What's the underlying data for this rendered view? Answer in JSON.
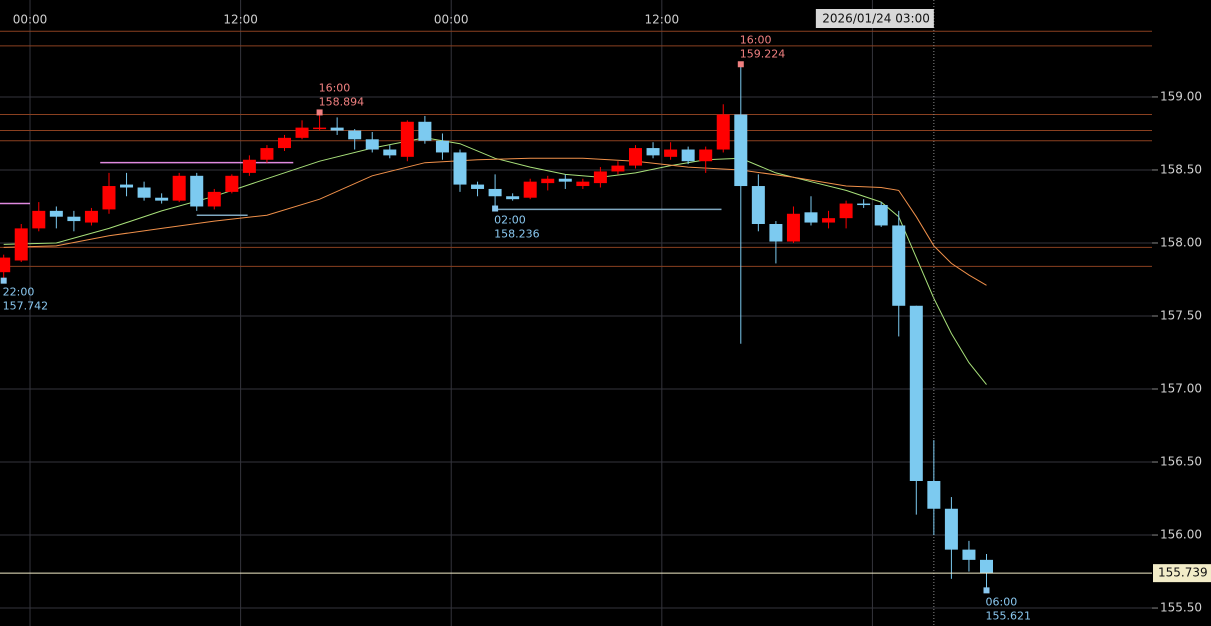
{
  "chart_data": {
    "type": "candlestick",
    "xlim": [
      -1.71,
      63.93
    ],
    "xticks": [
      {
        "value": 0,
        "label": "00:00"
      },
      {
        "value": 12,
        "label": "12:00"
      },
      {
        "value": 24,
        "label": "00:00"
      },
      {
        "value": 36,
        "label": "12:00"
      },
      {
        "value": 48,
        "label": null
      }
    ],
    "ylim": [
      155.377,
      159.664
    ],
    "yticks": [
      {
        "value": 155.5,
        "label": "155.50"
      },
      {
        "value": 156,
        "label": "156.00"
      },
      {
        "value": 156.5,
        "label": "156.50"
      },
      {
        "value": 157,
        "label": "157.00"
      },
      {
        "value": 157.5,
        "label": "157.50"
      },
      {
        "value": 158,
        "label": "158.00"
      },
      {
        "value": 158.5,
        "label": "158.50"
      },
      {
        "value": 159,
        "label": "159.00"
      }
    ],
    "grid": true,
    "up_color": "#ff0000",
    "down_color": "#7ccaf0",
    "candles": {
      "x": [
        -2,
        -1,
        0,
        1,
        2,
        3,
        4,
        5,
        6,
        7,
        8,
        9,
        10,
        11,
        12,
        13,
        14,
        15,
        16,
        17,
        18,
        19,
        20,
        21,
        22,
        23,
        24,
        25,
        26,
        27,
        28,
        29,
        30,
        31,
        32,
        33,
        34,
        35,
        36,
        37,
        38,
        39,
        40,
        41,
        42,
        43,
        44,
        45,
        46,
        47,
        48,
        49,
        50,
        51,
        52,
        53,
        54
      ],
      "open": [
        157.8,
        157.88,
        158.1,
        158.22,
        158.18,
        158.14,
        158.23,
        158.4,
        158.38,
        158.31,
        158.29,
        158.46,
        158.25,
        158.35,
        158.48,
        158.57,
        158.65,
        158.72,
        158.78,
        158.79,
        158.77,
        158.71,
        158.64,
        158.59,
        158.83,
        158.7,
        158.62,
        158.4,
        158.37,
        158.32,
        158.31,
        158.41,
        158.44,
        158.39,
        158.41,
        158.49,
        158.53,
        158.65,
        158.59,
        158.64,
        158.56,
        158.64,
        158.88,
        158.39,
        158.13,
        158.01,
        158.21,
        158.14,
        158.17,
        158.27,
        158.26,
        158.12,
        157.57,
        156.37,
        156.18,
        155.9,
        155.83
      ],
      "high": [
        157.92,
        158.13,
        158.28,
        158.25,
        158.22,
        158.24,
        158.48,
        158.48,
        158.42,
        158.34,
        158.48,
        158.48,
        158.37,
        158.47,
        158.6,
        158.67,
        158.74,
        158.84,
        158.894,
        158.86,
        158.78,
        158.76,
        158.67,
        158.84,
        158.87,
        158.75,
        158.64,
        158.42,
        158.47,
        158.34,
        158.44,
        158.46,
        158.47,
        158.44,
        158.52,
        158.56,
        158.67,
        158.69,
        158.69,
        158.66,
        158.66,
        158.95,
        159.224,
        158.47,
        158.15,
        158.25,
        158.32,
        158.22,
        158.29,
        158.3,
        158.28,
        158.22,
        157.57,
        156.65,
        156.26,
        155.96,
        155.87
      ],
      "low": [
        157.742,
        157.87,
        158.08,
        158.1,
        158.08,
        158.12,
        158.2,
        158.32,
        158.29,
        158.27,
        158.28,
        158.22,
        158.23,
        158.34,
        158.46,
        158.55,
        158.63,
        158.71,
        158.77,
        158.74,
        158.64,
        158.62,
        158.58,
        158.56,
        158.68,
        158.57,
        158.35,
        158.32,
        158.236,
        158.29,
        158.3,
        158.36,
        158.37,
        158.37,
        158.38,
        158.47,
        158.51,
        158.58,
        158.57,
        158.54,
        158.48,
        158.62,
        157.31,
        158.08,
        157.86,
        158.0,
        158.12,
        158.1,
        158.1,
        158.24,
        158.11,
        157.36,
        156.14,
        156.0,
        155.7,
        155.75,
        155.621
      ],
      "close": [
        157.9,
        158.1,
        158.22,
        158.18,
        158.15,
        158.22,
        158.39,
        158.38,
        158.31,
        158.29,
        158.46,
        158.25,
        158.35,
        158.46,
        158.57,
        158.65,
        158.72,
        158.79,
        158.79,
        158.77,
        158.71,
        158.64,
        158.6,
        158.83,
        158.7,
        158.62,
        158.4,
        158.37,
        158.32,
        158.3,
        158.42,
        158.44,
        158.42,
        158.42,
        158.49,
        158.53,
        158.65,
        158.6,
        158.64,
        158.56,
        158.64,
        158.88,
        158.39,
        158.13,
        158.01,
        158.2,
        158.14,
        158.17,
        158.27,
        158.26,
        158.12,
        157.57,
        156.37,
        156.18,
        155.9,
        155.83,
        155.739
      ]
    },
    "lines": [
      {
        "color": "#a8e07a",
        "x": [
          -2,
          1,
          4,
          7,
          10,
          13,
          16,
          19,
          22,
          24,
          26,
          28,
          30,
          32,
          34,
          36,
          38,
          40,
          42,
          44,
          46,
          48,
          49,
          50,
          51,
          52,
          53,
          54
        ],
        "values": [
          157.99,
          158.0,
          158.1,
          158.22,
          158.32,
          158.44,
          158.56,
          158.65,
          158.72,
          158.68,
          158.58,
          158.52,
          158.47,
          158.45,
          158.48,
          158.53,
          158.57,
          158.58,
          158.48,
          158.42,
          158.36,
          158.28,
          158.18,
          157.9,
          157.62,
          157.38,
          157.18,
          157.03
        ]
      },
      {
        "color": "#f0904a",
        "x": [
          -2,
          1,
          4,
          7,
          10,
          13,
          16,
          19,
          22,
          25,
          28,
          31,
          34,
          37,
          40,
          43,
          46,
          48,
          49,
          50,
          51,
          52,
          53,
          54
        ],
        "values": [
          157.97,
          157.98,
          158.05,
          158.1,
          158.15,
          158.19,
          158.3,
          158.46,
          158.55,
          158.57,
          158.58,
          158.58,
          158.56,
          158.52,
          158.5,
          158.45,
          158.39,
          158.38,
          158.36,
          158.18,
          157.98,
          157.86,
          157.78,
          157.71
        ]
      }
    ],
    "levels": {
      "color": "#8a4020",
      "values": [
        159.45,
        159.35,
        158.88,
        158.77,
        158.7,
        157.97,
        157.84
      ]
    },
    "segments": [
      {
        "color": "#e08ae0",
        "x": [
          -2,
          0
        ],
        "value": 158.27
      },
      {
        "color": "#e08ae0",
        "x": [
          4,
          15
        ],
        "value": 158.55
      },
      {
        "color": "#7fa8c0",
        "x": [
          9.5,
          12.4
        ],
        "value": 158.19
      },
      {
        "color": "#7fa8c0",
        "x": [
          26.5,
          39.4
        ],
        "value": 158.23
      }
    ],
    "annotations": [
      {
        "x": -2,
        "time": "22:00",
        "value": 157.742,
        "value_label": "157.742",
        "position": "below",
        "color": "#8ac8f0"
      },
      {
        "x": 16,
        "time": "16:00",
        "value": 158.894,
        "value_label": "158.894",
        "position": "above",
        "color": "#f08080"
      },
      {
        "x": 26,
        "time": "02:00",
        "value": 158.236,
        "value_label": "158.236",
        "position": "below",
        "color": "#8ac8f0"
      },
      {
        "x": 40,
        "time": "16:00",
        "value": 159.224,
        "value_label": "159.224",
        "position": "above",
        "color": "#f08080"
      },
      {
        "x": 54,
        "time": "06:00",
        "value": 155.621,
        "value_label": "155.621",
        "position": "below",
        "color": "#8ac8f0"
      }
    ],
    "current_price": {
      "value": 155.739,
      "label": "155.739",
      "color": "#f2ecc8"
    },
    "crosshair": {
      "x": 51,
      "label": "2026/01/24 03:00"
    }
  }
}
